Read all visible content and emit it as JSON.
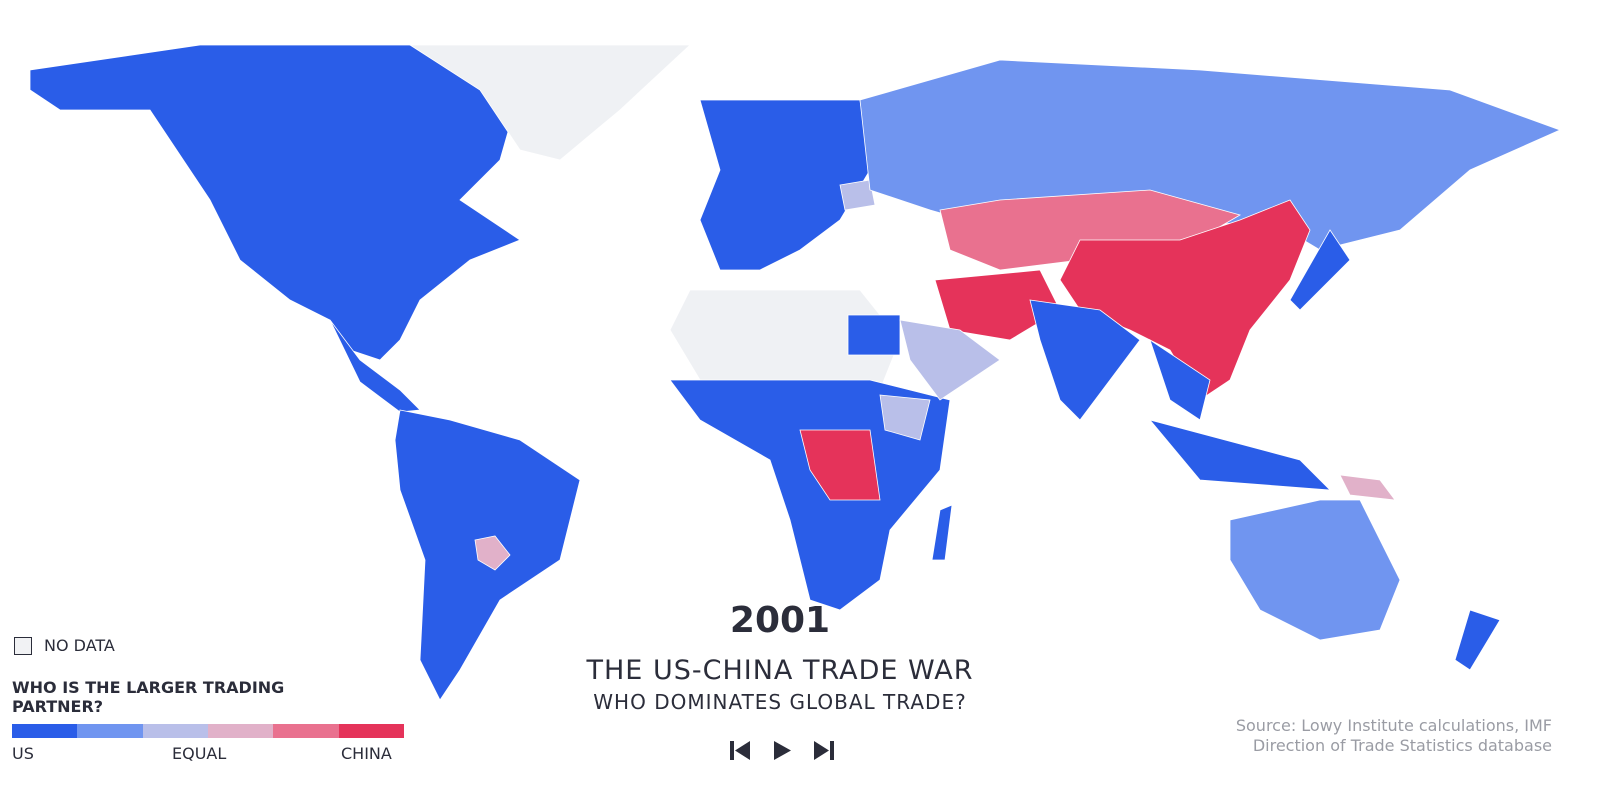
{
  "year": "2001",
  "title": "THE US-CHINA TRADE WAR",
  "subtitle": "WHO DOMINATES GLOBAL TRADE?",
  "source": [
    "Source: Lowy Institute calculations, IMF",
    "Direction of Trade Statistics database"
  ],
  "legend": {
    "no_data": "NO DATA",
    "title": "WHO IS THE LARGER TRADING PARTNER?",
    "labels": [
      "US",
      "EQUAL",
      "CHINA"
    ],
    "colors": [
      "#2a5de8",
      "#7095f0",
      "#b9bfe9",
      "#e1b1c9",
      "#e9718f",
      "#e5335a"
    ]
  }
}
